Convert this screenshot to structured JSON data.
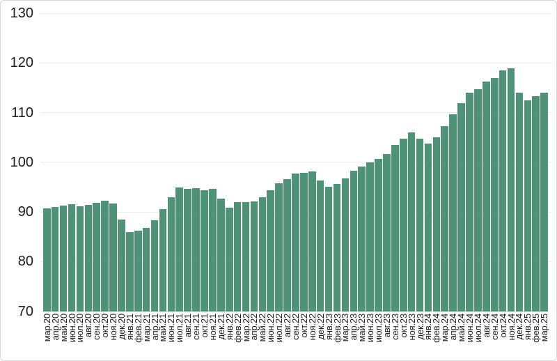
{
  "chart_data": {
    "type": "bar",
    "title": "",
    "xlabel": "",
    "ylabel": "",
    "ylim": [
      70,
      130
    ],
    "yticks": [
      70,
      80,
      90,
      100,
      110,
      120,
      130
    ],
    "grid": true,
    "legend": false,
    "bar_color": "#4e9377",
    "gridline_color": "#ececec",
    "text_color": "#1c1c1c",
    "categories": [
      "мар.20",
      "апр.20",
      "май.20",
      "июн.20",
      "июл.20",
      "авг.20",
      "сен.20",
      "окт.20",
      "ноя.20",
      "дек.20",
      "янв.21",
      "фев.21",
      "мар.21",
      "апр.21",
      "май.21",
      "июн.21",
      "июл.21",
      "авг.21",
      "сен.21",
      "окт.21",
      "ноя.21",
      "дек.21",
      "янв.22",
      "фев.22",
      "мар.22",
      "апр.22",
      "май.22",
      "июн.22",
      "июл.22",
      "авг.22",
      "сен.22",
      "окт.22",
      "ноя.22",
      "дек.22",
      "янв.23",
      "фев.23",
      "мар.23",
      "апр.23",
      "май.23",
      "июн.23",
      "июл.23",
      "авг.23",
      "сен.23",
      "окт.23",
      "ноя.23",
      "дек.23",
      "янв.24",
      "фев.24",
      "мар.24",
      "апр.24",
      "май.24",
      "июн.24",
      "июл.24",
      "авг.24",
      "сен.24",
      "окт.24",
      "ноя.24",
      "дек.24",
      "янв.25",
      "фев.25",
      "мар.25"
    ],
    "values": [
      90.7,
      91.0,
      91.3,
      91.5,
      91.1,
      91.4,
      91.8,
      92.2,
      91.7,
      88.5,
      86.0,
      86.2,
      86.8,
      88.3,
      90.6,
      93.0,
      94.9,
      94.6,
      94.8,
      94.3,
      94.7,
      92.7,
      90.8,
      92.0,
      92.0,
      92.1,
      93.0,
      94.3,
      95.8,
      96.6,
      97.7,
      97.9,
      98.1,
      96.3,
      95.0,
      95.6,
      96.8,
      98.3,
      99.1,
      99.9,
      100.6,
      101.6,
      103.5,
      104.8,
      106.0,
      104.8,
      103.7,
      105.0,
      107.2,
      109.7,
      111.9,
      114.0,
      114.7,
      116.2,
      117.0,
      118.5,
      118.9,
      114.0,
      112.4,
      113.3,
      114.0
    ]
  }
}
